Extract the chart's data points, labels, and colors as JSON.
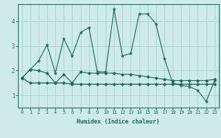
{
  "xlabel": "Humidex (Indice chaleur)",
  "x": [
    0,
    1,
    2,
    3,
    4,
    5,
    6,
    7,
    8,
    9,
    10,
    11,
    12,
    13,
    14,
    15,
    16,
    17,
    18,
    19,
    20,
    21,
    22,
    23
  ],
  "line1": [
    1.7,
    2.05,
    2.4,
    3.05,
    1.9,
    3.3,
    2.6,
    3.55,
    3.75,
    1.95,
    1.95,
    4.5,
    2.6,
    2.7,
    4.3,
    4.3,
    3.9,
    2.5,
    1.5,
    1.4,
    1.35,
    1.2,
    0.75,
    1.6
  ],
  "line2": [
    1.7,
    1.5,
    1.5,
    1.5,
    1.5,
    1.5,
    1.45,
    1.45,
    1.45,
    1.45,
    1.45,
    1.45,
    1.45,
    1.45,
    1.45,
    1.45,
    1.45,
    1.45,
    1.45,
    1.45,
    1.45,
    1.45,
    1.45,
    1.45
  ],
  "line3": [
    1.7,
    2.05,
    2.0,
    1.9,
    1.5,
    1.85,
    1.5,
    1.95,
    1.9,
    1.9,
    1.9,
    1.9,
    1.85,
    1.85,
    1.8,
    1.75,
    1.7,
    1.65,
    1.6,
    1.6,
    1.6,
    1.6,
    1.6,
    1.65
  ],
  "bg_color": "#ceeaea",
  "grid_color": "#a8d0cc",
  "line_color": "#1a6b5a",
  "ylim": [
    0.5,
    4.7
  ],
  "xlim": [
    -0.5,
    23.5
  ],
  "yticks": [
    1,
    2,
    3,
    4
  ],
  "xticks": [
    0,
    1,
    2,
    3,
    4,
    5,
    6,
    7,
    8,
    9,
    10,
    11,
    12,
    13,
    14,
    15,
    16,
    17,
    18,
    19,
    20,
    21,
    22,
    23
  ]
}
